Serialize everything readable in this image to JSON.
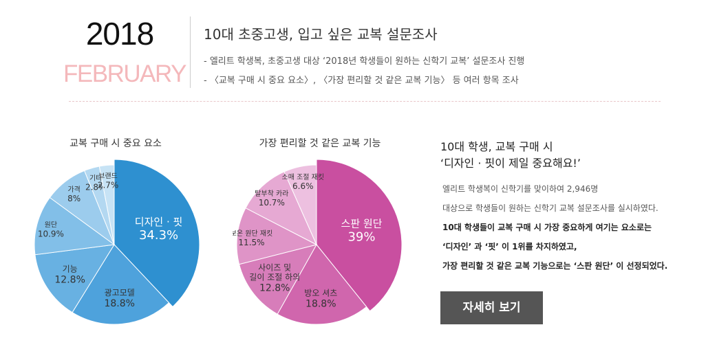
{
  "header": {
    "year": "2018",
    "month": "FEBRUARY",
    "title": "10대 초중고생, 입고 싶은 교복 설문조사",
    "lines": [
      "- 엘리트 학생복, 초중고생 대상 ‘2018년 학생들이 원하는 신학기 교복’ 설문조사 진행",
      "- 〈교복 구매 시 중요 요소〉, 〈가장 편리할 것 같은 교복 기능〉 등 여러 항목 조사"
    ]
  },
  "chart_data": [
    {
      "type": "pie",
      "title": "교복 구매 시 중요 요소",
      "unit": "%",
      "slices": [
        {
          "label": "디자인 · 핏",
          "value": 34.3,
          "color": "#2e90d0"
        },
        {
          "label": "광고모델",
          "value": 18.8,
          "color": "#4ea2dc"
        },
        {
          "label": "기능",
          "value": 12.8,
          "color": "#68b1e2"
        },
        {
          "label": "원단",
          "value": 10.9,
          "color": "#82bfe8"
        },
        {
          "label": "가격",
          "value": 8,
          "color": "#9ccced"
        },
        {
          "label": "기타",
          "value": 2.8,
          "color": "#b3d8f1"
        },
        {
          "label": "브랜드",
          "value": 2.7,
          "color": "#c7e3f5"
        }
      ]
    },
    {
      "type": "pie",
      "title": "가장 편리할 것 같은 교복 기능",
      "unit": "%",
      "slices": [
        {
          "label": "스판 원단",
          "value": 39,
          "color": "#c94fa0"
        },
        {
          "label": "방오 셔츠",
          "value": 18.8,
          "color": "#d066ad"
        },
        {
          "label": "사이즈 및 길이 조절 하의",
          "value": 12.8,
          "color": "#d77dba"
        },
        {
          "label": "보온 원단 재킷",
          "value": 11.5,
          "color": "#df94c7"
        },
        {
          "label": "탈부착 카라",
          "value": 10.7,
          "color": "#e6a9d3"
        },
        {
          "label": "소매 조절 재킷",
          "value": 6.6,
          "color": "#edc0e0"
        }
      ]
    }
  ],
  "summary": {
    "heading_lines": [
      "10대 학생, 교복 구매 시",
      "‘디자인 · 핏이 제일 중요해요!’"
    ],
    "body_lines": [
      "엘리트 학생복이 신학기를 맞이하여 2,946명",
      "대상으로 학생들이 원하는 신학기 교복 설문조사를 실시하였다.",
      "10대 학생들이 교복 구매 시 가장 중요하게 여기는 요소로는",
      "‘디자인’ 과   ‘핏’ 이 1위를 차지하였고,",
      "가장 편리할 것 같은 교복 기능으로는   ‘스판 원단’ 이 선정되었다."
    ],
    "button_label": "자세히 보기"
  }
}
